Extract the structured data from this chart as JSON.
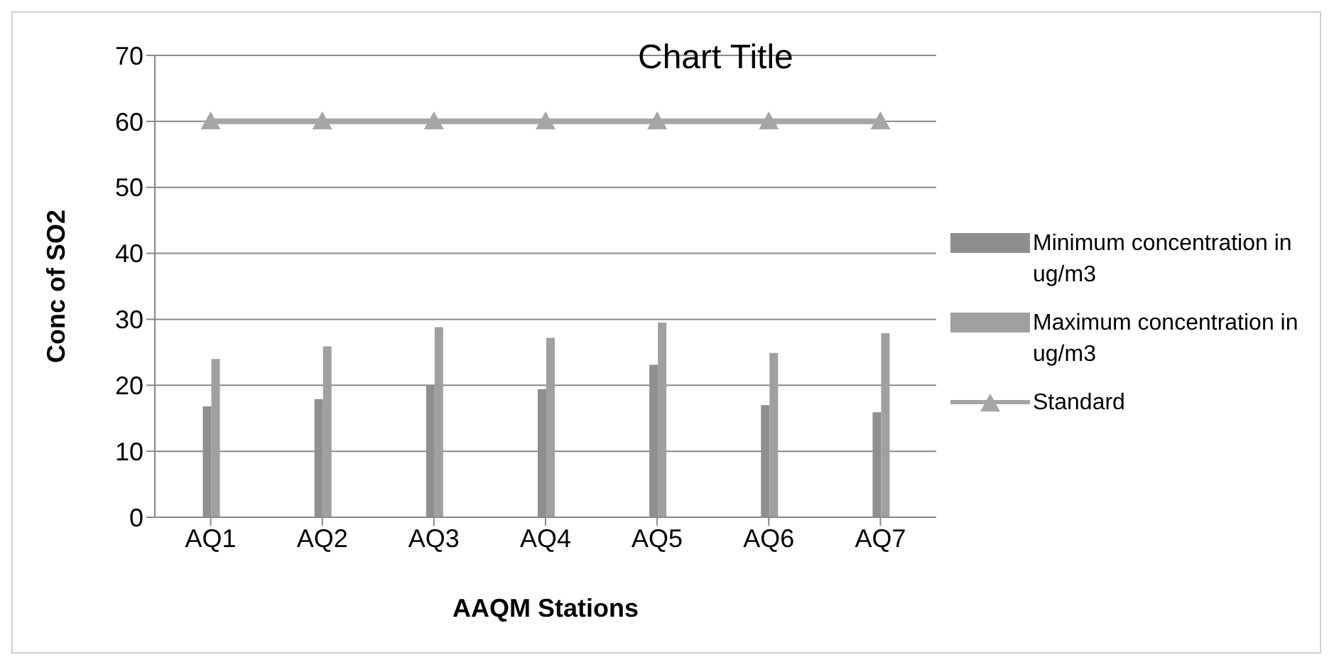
{
  "chart_data": {
    "type": "bar",
    "title": "Chart Title",
    "xlabel": "AAQM Stations",
    "ylabel": "Conc of SO2",
    "categories": [
      "AQ1",
      "AQ2",
      "AQ3",
      "AQ4",
      "AQ5",
      "AQ6",
      "AQ7"
    ],
    "series": [
      {
        "name": "Minimum concentration in ug/m3",
        "color": "#8f8f8f",
        "values": [
          16.8,
          17.9,
          20,
          19.4,
          23.1,
          17,
          15.9
        ]
      },
      {
        "name": "Maximum concentration in ug/m3",
        "color": "#a0a0a0",
        "values": [
          24,
          25.9,
          28.8,
          27.2,
          29.5,
          24.9,
          27.9
        ]
      },
      {
        "name": "Standard",
        "type": "line",
        "color": "#a6a6a6",
        "marker": "triangle",
        "values": [
          60,
          60,
          60,
          60,
          60,
          60,
          60
        ]
      }
    ],
    "ylim": [
      0,
      70
    ],
    "yticks": [
      0,
      10,
      20,
      30,
      40,
      50,
      60,
      70
    ],
    "grid": "y",
    "legend": "right"
  }
}
